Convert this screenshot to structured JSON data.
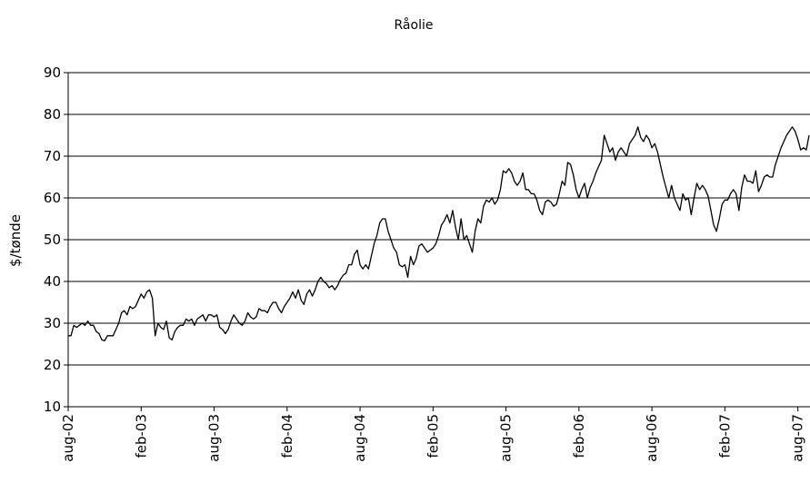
{
  "chart_data": {
    "type": "line",
    "title": "Råolie",
    "y_label": "$/tønde",
    "categories": [
      "aug-02",
      null,
      null,
      null,
      null,
      null,
      null,
      null,
      null,
      null,
      null,
      null,
      null,
      null,
      null,
      null,
      null,
      null,
      null,
      null,
      null,
      null,
      null,
      null,
      null,
      null,
      "feb-03",
      null,
      null,
      null,
      null,
      null,
      null,
      null,
      null,
      null,
      null,
      null,
      null,
      null,
      null,
      null,
      null,
      null,
      null,
      null,
      null,
      null,
      null,
      null,
      null,
      null,
      "aug-03",
      null,
      null,
      null,
      null,
      null,
      null,
      null,
      null,
      null,
      null,
      null,
      null,
      null,
      null,
      null,
      null,
      null,
      null,
      null,
      null,
      null,
      null,
      null,
      null,
      null,
      "feb-04",
      null,
      null,
      null,
      null,
      null,
      null,
      null,
      null,
      null,
      null,
      null,
      null,
      null,
      null,
      null,
      null,
      null,
      null,
      null,
      null,
      null,
      null,
      null,
      null,
      null,
      "aug-04",
      null,
      null,
      null,
      null,
      null,
      null,
      null,
      null,
      null,
      null,
      null,
      null,
      null,
      null,
      null,
      null,
      null,
      null,
      null,
      null,
      null,
      null,
      null,
      null,
      null,
      "feb-05",
      null,
      null,
      null,
      null,
      null,
      null,
      null,
      null,
      null,
      null,
      null,
      null,
      null,
      null,
      null,
      null,
      null,
      null,
      null,
      null,
      null,
      null,
      null,
      null,
      null,
      "aug-05",
      null,
      null,
      null,
      null,
      null,
      null,
      null,
      null,
      null,
      null,
      null,
      null,
      null,
      null,
      null,
      null,
      null,
      null,
      null,
      null,
      null,
      null,
      null,
      null,
      null,
      "feb-06",
      null,
      null,
      null,
      null,
      null,
      null,
      null,
      null,
      null,
      null,
      null,
      null,
      null,
      null,
      null,
      null,
      null,
      null,
      null,
      null,
      null,
      null,
      null,
      null,
      null,
      "aug-06",
      null,
      null,
      null,
      null,
      null,
      null,
      null,
      null,
      null,
      null,
      null,
      null,
      null,
      null,
      null,
      null,
      null,
      null,
      null,
      null,
      null,
      null,
      null,
      null,
      null,
      "feb-07",
      null,
      null,
      null,
      null,
      null,
      null,
      null,
      null,
      null,
      null,
      null,
      null,
      null,
      null,
      null,
      null,
      null,
      null,
      null,
      null,
      null,
      null,
      null,
      null,
      null,
      "aug-07",
      null,
      null,
      null,
      null
    ],
    "series": [
      {
        "color": "#000000",
        "values": [
          27,
          27,
          29.5,
          29,
          29.5,
          30,
          29.5,
          30.5,
          29.5,
          29.5,
          28,
          27.5,
          26,
          25.8,
          27,
          27,
          27,
          28.5,
          30,
          32.5,
          33,
          32,
          34,
          33.5,
          34,
          35.5,
          37,
          36,
          37.5,
          38,
          36,
          27,
          30,
          29,
          28.5,
          30.5,
          26.5,
          26,
          28,
          29,
          29.5,
          29.5,
          31,
          30.5,
          31,
          29.5,
          31,
          31.5,
          32,
          30.5,
          32,
          32,
          31.5,
          32,
          29,
          28.5,
          27.5,
          28.5,
          30.5,
          32,
          31,
          30,
          29.5,
          30.5,
          32.5,
          31.5,
          31,
          31.5,
          33.5,
          33,
          33,
          32.5,
          34,
          35,
          35,
          33.5,
          32.5,
          34,
          35,
          36,
          37.5,
          36,
          38,
          35.5,
          34.5,
          37,
          38,
          36.5,
          38,
          40,
          41,
          40,
          39.5,
          38.5,
          39,
          38,
          39,
          40.5,
          41.5,
          42,
          44,
          44,
          46.5,
          47.5,
          44,
          43,
          44,
          43,
          46,
          49,
          51,
          54,
          55,
          55,
          52,
          50,
          48,
          47,
          44,
          43.5,
          44,
          41,
          46,
          44,
          45.5,
          48.5,
          49,
          48,
          47,
          47.5,
          48,
          49,
          51,
          53.5,
          54.5,
          56,
          54,
          57,
          53,
          50,
          55,
          50,
          51,
          49,
          47,
          52,
          55,
          54,
          58,
          59.5,
          59,
          60,
          58.5,
          59.5,
          62,
          66.5,
          66,
          67,
          66,
          64,
          63,
          64,
          66,
          62,
          62,
          61,
          61,
          59.5,
          57,
          56,
          59,
          59.5,
          59,
          58,
          58.5,
          61,
          64,
          63,
          68.5,
          68,
          65.5,
          62,
          60,
          62,
          63.5,
          60,
          62.5,
          64,
          66,
          67.5,
          69,
          75,
          73,
          71,
          72,
          69,
          71,
          72,
          71,
          70,
          73,
          74,
          75,
          77,
          74.5,
          73.5,
          75,
          74,
          72,
          73,
          71,
          68,
          65,
          62.5,
          60,
          63,
          60,
          58.5,
          57,
          61,
          59.5,
          60,
          56,
          60,
          63.5,
          62,
          63,
          62,
          60.5,
          57,
          53.5,
          52,
          55,
          58.5,
          59.5,
          59.5,
          61,
          62,
          61,
          57,
          62.5,
          65.5,
          64,
          64,
          63.5,
          66.5,
          61.5,
          63,
          65,
          65.5,
          65,
          65,
          68,
          70,
          72,
          73.5,
          75,
          76,
          77,
          76,
          74,
          71.5,
          72,
          71.5,
          75
        ]
      }
    ],
    "ylim": [
      10,
      90
    ],
    "yticks": [
      10,
      20,
      30,
      40,
      50,
      60,
      70,
      80,
      90
    ],
    "grid": true
  }
}
